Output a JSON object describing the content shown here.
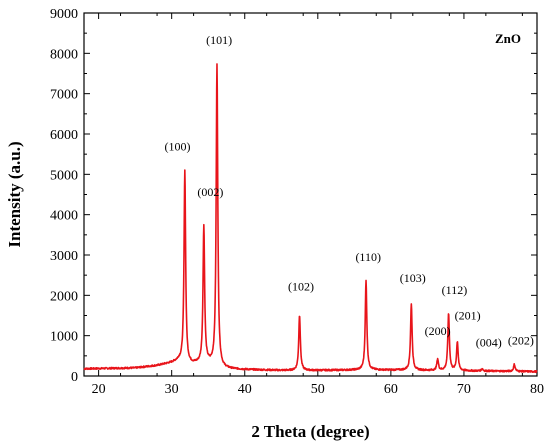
{
  "chart_data": {
    "type": "line",
    "xlabel": "2 Theta (degree)",
    "ylabel": "Intensity (a.u.)",
    "xlim": [
      18,
      80
    ],
    "ylim": [
      0,
      9000
    ],
    "x_ticks": [
      20,
      30,
      40,
      50,
      60,
      70,
      80
    ],
    "y_ticks": [
      0,
      1000,
      2000,
      3000,
      4000,
      5000,
      6000,
      7000,
      8000,
      9000
    ],
    "grid": false,
    "legend": {
      "position": "top-right",
      "entries": [
        "ZnO"
      ]
    },
    "series": [
      {
        "name": "ZnO",
        "color": "#e8141a",
        "baseline": [
          [
            18,
            180
          ],
          [
            25,
            200
          ],
          [
            28,
            260
          ],
          [
            30,
            330
          ],
          [
            31,
            380
          ],
          [
            32,
            280
          ],
          [
            33.5,
            300
          ],
          [
            35,
            300
          ],
          [
            37,
            180
          ],
          [
            40,
            160
          ],
          [
            45,
            140
          ],
          [
            50,
            140
          ],
          [
            55,
            150
          ],
          [
            60,
            150
          ],
          [
            65,
            140
          ],
          [
            70,
            130
          ],
          [
            75,
            120
          ],
          [
            80,
            110
          ]
        ],
        "peaks": [
          {
            "x": 31.8,
            "y": 5100,
            "label": "(100)"
          },
          {
            "x": 34.4,
            "y": 3720,
            "label": "(002)"
          },
          {
            "x": 36.2,
            "y": 7730,
            "label": "(101)"
          },
          {
            "x": 47.5,
            "y": 1520,
            "label": "(102)"
          },
          {
            "x": 56.6,
            "y": 2360,
            "label": "(110)"
          },
          {
            "x": 62.8,
            "y": 1780,
            "label": "(103)"
          },
          {
            "x": 66.4,
            "y": 420,
            "label": "(200)"
          },
          {
            "x": 67.9,
            "y": 1540,
            "label": "(112)"
          },
          {
            "x": 69.1,
            "y": 850,
            "label": "(201)"
          },
          {
            "x": 72.5,
            "y": 180,
            "label": "(004)"
          },
          {
            "x": 76.9,
            "y": 290,
            "label": "(202)"
          }
        ]
      }
    ]
  }
}
